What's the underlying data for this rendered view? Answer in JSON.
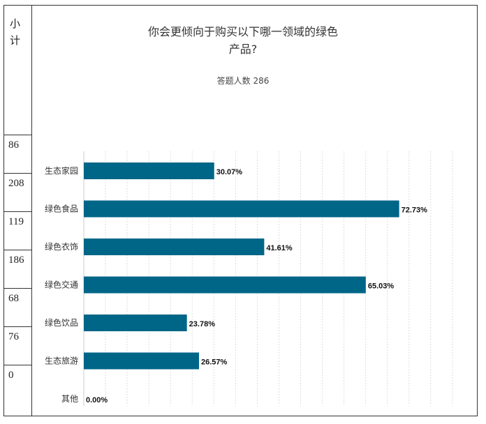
{
  "left_column": {
    "header_line1": "小",
    "header_line2": "计",
    "counts": [
      "86",
      "208",
      "119",
      "186",
      "68",
      "76",
      "0"
    ]
  },
  "chart_data": {
    "type": "bar",
    "orientation": "horizontal",
    "title_line1": "你会更倾向于购买以下哪一领域的绿色",
    "title_line2": "产品?",
    "subtitle": "答题人数 286",
    "categories": [
      "生态家园",
      "绿色食品",
      "绿色衣饰",
      "绿色交通",
      "绿色饮品",
      "生态旅游",
      "其他"
    ],
    "values": [
      30.07,
      72.73,
      41.61,
      65.03,
      23.78,
      26.57,
      0.0
    ],
    "value_labels": [
      "30.07%",
      "72.73%",
      "41.61%",
      "65.03%",
      "23.78%",
      "26.57%",
      "0.00%"
    ],
    "xlim": [
      0,
      100
    ],
    "grid": true,
    "bar_color": "#006688"
  }
}
